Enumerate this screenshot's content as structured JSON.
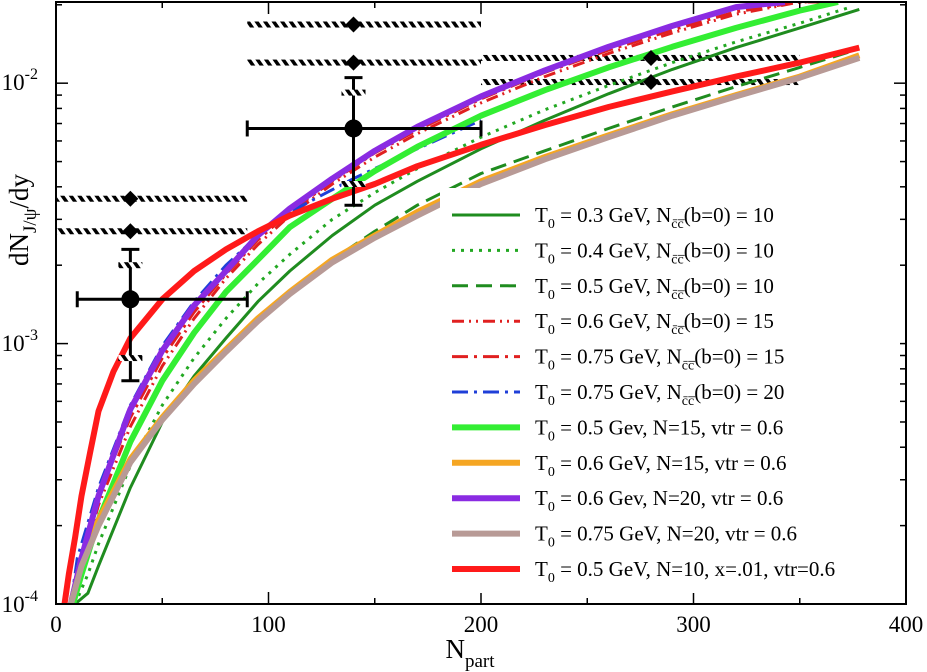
{
  "chart_data": {
    "type": "line",
    "title": "",
    "xlabel": "N",
    "xlabel_sub": "part",
    "ylabel": "dN",
    "ylabel_sub": "J/ψ",
    "ylabel_tail": "/dy",
    "x_range": [
      0,
      400
    ],
    "y_range": [
      0.0001,
      0.0205
    ],
    "y_scale": "log",
    "grid": false,
    "legend_position": "bottom-right",
    "x_ticks": [
      0,
      100,
      200,
      300,
      400
    ],
    "x_tick_labels": [
      "0",
      "100",
      "200",
      "300",
      "400"
    ],
    "y_ticks": [
      {
        "value": 0.0001,
        "base": "10",
        "exp": "-4"
      },
      {
        "value": 0.001,
        "base": "10",
        "exp": "-3"
      },
      {
        "value": 0.01,
        "base": "10",
        "exp": "-2"
      }
    ],
    "series": [
      {
        "name": "T0 = 0.3 GeV, Ncc(b=0) = 10",
        "color": "#1f8c1f",
        "width": 3,
        "dash": "",
        "legend": {
          "pre": "T",
          "sub0": "0",
          "mid": " = 0.3 GeV, N",
          "sub1": "c̄c̅",
          "post": "(b=0) = 10"
        },
        "x": [
          9,
          15,
          20,
          35,
          50,
          65,
          80,
          95,
          110,
          130,
          150,
          170,
          200,
          230,
          260,
          290,
          320,
          350,
          378
        ],
        "y": [
          0.0001,
          0.00011,
          0.00014,
          0.00028,
          0.0005,
          0.00075,
          0.00105,
          0.00145,
          0.0019,
          0.0026,
          0.0034,
          0.0042,
          0.0056,
          0.0072,
          0.0091,
          0.0113,
          0.0137,
          0.0163,
          0.0192
        ]
      },
      {
        "name": "T0 = 0.4 GeV, Ncc(b=0) = 10",
        "color": "#22a822",
        "width": 3,
        "dash": "3,6",
        "legend": {
          "pre": "T",
          "sub0": "0",
          "mid": " = 0.4 GeV, N",
          "sub1": "c̄c̅",
          "post": "(b=0) = 10"
        },
        "x": [
          9,
          15,
          20,
          35,
          50,
          65,
          80,
          95,
          110,
          130,
          150,
          170,
          200,
          230,
          260,
          290,
          320,
          350,
          373
        ],
        "y": [
          0.0001,
          0.00013,
          0.00017,
          0.00034,
          0.00058,
          0.00088,
          0.00125,
          0.0017,
          0.0022,
          0.003,
          0.0038,
          0.0047,
          0.0062,
          0.0079,
          0.0098,
          0.012,
          0.0144,
          0.017,
          0.0195
        ]
      },
      {
        "name": "T0 = 0.5 GeV, Ncc(b=0) = 10",
        "color": "#1f8c1f",
        "width": 3,
        "dash": "16,8",
        "legend": {
          "pre": "T",
          "sub0": "0",
          "mid": " = 0.5 GeV, N",
          "sub1": "c̄c̅",
          "post": "(b=0) = 10"
        },
        "x": [
          8,
          15,
          20,
          35,
          50,
          65,
          80,
          95,
          110,
          130,
          150,
          170,
          200,
          230,
          260,
          290,
          320,
          350,
          375
        ],
        "y": [
          0.0001,
          0.00016,
          0.0002,
          0.00036,
          0.00052,
          0.00072,
          0.00094,
          0.00122,
          0.00155,
          0.0021,
          0.0027,
          0.0034,
          0.0045,
          0.0055,
          0.0067,
          0.0081,
          0.0097,
          0.0115,
          0.0133
        ]
      },
      {
        "name": "T0 = 0.6 GeV, Ncc(b=0) = 15",
        "color": "#e02020",
        "width": 3,
        "dash": "12,5,2,5,2,5",
        "legend": {
          "pre": "T",
          "sub0": "0",
          "mid": " = 0.6 GeV, N",
          "sub1": "c̄c̅",
          "post": "(b=0) = 15"
        },
        "x": [
          8,
          12,
          20,
          35,
          50,
          65,
          80,
          95,
          110,
          130,
          150,
          170,
          200,
          230,
          260,
          290,
          320,
          350,
          365
        ],
        "y": [
          0.0001,
          0.00014,
          0.00024,
          0.00048,
          0.00082,
          0.00125,
          0.00178,
          0.0024,
          0.0031,
          0.0041,
          0.0052,
          0.0064,
          0.0084,
          0.0106,
          0.013,
          0.0156,
          0.0184,
          0.0205,
          0.0205
        ]
      },
      {
        "name": "T0 = 0.75 GeV, Ncc(b=0) = 15",
        "color": "#e02020",
        "width": 3,
        "dash": "16,6,3,6",
        "legend": {
          "pre": "T",
          "sub0": "0",
          "mid": " = 0.75 GeV, N",
          "sub1": "c̄c̅",
          "post": "(b=0) = 15"
        },
        "x": [
          7,
          12,
          20,
          35,
          50,
          65,
          80,
          95,
          110,
          130,
          150,
          170,
          200,
          230,
          260,
          290,
          320,
          350,
          362
        ],
        "y": [
          0.0001,
          0.00015,
          0.00026,
          0.00052,
          0.00088,
          0.00132,
          0.00185,
          0.0025,
          0.0032,
          0.0042,
          0.0054,
          0.0066,
          0.0087,
          0.011,
          0.0134,
          0.016,
          0.0188,
          0.0205,
          0.0205
        ]
      },
      {
        "name": "T0 = 0.75 GeV, Ncc(b=0) = 20",
        "color": "#1f3fd8",
        "width": 3,
        "dash": "16,6,3,6",
        "legend": {
          "pre": "T",
          "sub0": "0",
          "mid": " = 0.75 GeV, N",
          "sub1": "c̄c̅",
          "post": "(b=0) = 20"
        },
        "x": [
          7,
          10,
          20,
          35,
          50,
          65,
          80,
          95,
          110,
          130,
          140,
          150,
          170,
          200
        ],
        "y": [
          0.0001,
          0.00015,
          0.00028,
          0.00058,
          0.00098,
          0.00145,
          0.002,
          0.0026,
          0.0032,
          0.0039,
          0.0043,
          0.0047,
          0.0056,
          0.0072
        ]
      },
      {
        "name": "T0 = 0.5 Gev, N=15, vtr = 0.6",
        "color": "#33ee33",
        "width": 6,
        "dash": "",
        "legend": {
          "pre": "T",
          "sub0": "0",
          "mid": " = 0.5 Gev, N=15, vtr = 0.6",
          "sub1": "",
          "post": ""
        },
        "x": [
          8,
          12,
          20,
          35,
          50,
          65,
          80,
          95,
          110,
          130,
          150,
          170,
          200,
          230,
          260,
          290,
          320,
          350,
          368
        ],
        "y": [
          0.0001,
          0.00013,
          0.00021,
          0.00042,
          0.00072,
          0.0011,
          0.00158,
          0.0021,
          0.0028,
          0.0036,
          0.0046,
          0.0057,
          0.0075,
          0.0094,
          0.0115,
          0.0138,
          0.0163,
          0.019,
          0.0205
        ]
      },
      {
        "name": "T0 = 0.6 GeV, N=15, vtr = 0.6",
        "color": "#f5a623",
        "width": 6,
        "dash": "",
        "legend": {
          "pre": "T",
          "sub0": "0",
          "mid": " = 0.6 GeV, N=15, vtr = 0.6",
          "sub1": "",
          "post": ""
        },
        "x": [
          7,
          12,
          20,
          35,
          50,
          65,
          80,
          95,
          110,
          130,
          150,
          170,
          200,
          230,
          260,
          290,
          320,
          350,
          378
        ],
        "y": [
          0.0001,
          0.00015,
          0.00021,
          0.00036,
          0.00052,
          0.00072,
          0.00095,
          0.00125,
          0.00158,
          0.0021,
          0.0026,
          0.0032,
          0.0042,
          0.0052,
          0.0063,
          0.0076,
          0.009,
          0.0106,
          0.0128
        ]
      },
      {
        "name": "T0 = 0.6 Gev, N=20, vtr = 0.6",
        "color": "#8a2be2",
        "width": 6,
        "dash": "",
        "legend": {
          "pre": "T",
          "sub0": "0",
          "mid": " = 0.6 Gev, N=20, vtr = 0.6",
          "sub1": "",
          "post": ""
        },
        "x": [
          7,
          12,
          20,
          35,
          50,
          65,
          80,
          95,
          110,
          130,
          150,
          170,
          200,
          230,
          260,
          290,
          320,
          343
        ],
        "y": [
          0.0001,
          0.00015,
          0.00026,
          0.00056,
          0.00094,
          0.0014,
          0.0019,
          0.0026,
          0.0033,
          0.0043,
          0.0055,
          0.0068,
          0.0089,
          0.0112,
          0.0138,
          0.0166,
          0.0196,
          0.0205
        ]
      },
      {
        "name": "T0 = 0.75 GeV, N=20, vtr = 0.6",
        "color": "#b89a96",
        "width": 6,
        "dash": "",
        "legend": {
          "pre": "T",
          "sub0": "0",
          "mid": " = 0.75 GeV, N=20, vtr = 0.6",
          "sub1": "",
          "post": ""
        },
        "x": [
          7,
          12,
          20,
          35,
          50,
          65,
          80,
          95,
          110,
          130,
          150,
          170,
          200,
          230,
          260,
          290,
          320,
          350,
          378
        ],
        "y": [
          0.0001,
          0.00014,
          0.0002,
          0.00035,
          0.00051,
          0.0007,
          0.00093,
          0.00122,
          0.00155,
          0.00205,
          0.00255,
          0.0031,
          0.0041,
          0.0051,
          0.0062,
          0.0075,
          0.0089,
          0.0105,
          0.0125
        ]
      },
      {
        "name": "T0 = 0.5 GeV, N=10, x=.01, vtr=0.6",
        "color": "#ff1a1a",
        "width": 6,
        "dash": "",
        "legend": {
          "pre": "T",
          "sub0": "0",
          "mid": " = 0.5 GeV, N=10, x=.01, vtr=0.6",
          "sub1": "",
          "post": ""
        },
        "x": [
          4,
          6,
          9,
          12,
          16,
          20,
          27,
          35,
          50,
          65,
          80,
          95,
          110,
          130,
          150,
          170,
          200,
          230,
          260,
          290,
          320,
          350,
          378
        ],
        "y": [
          0.0001,
          0.00013,
          0.00018,
          0.00026,
          0.00038,
          0.00055,
          0.00078,
          0.00105,
          0.00148,
          0.0019,
          0.0023,
          0.0027,
          0.0031,
          0.0036,
          0.0041,
          0.0048,
          0.0058,
          0.0069,
          0.0081,
          0.0093,
          0.0106,
          0.012,
          0.0137
        ]
      }
    ],
    "data_points": [
      {
        "name": "point-a",
        "x": 35,
        "y": 0.00148,
        "xerr": [
          10,
          90
        ],
        "yerr": [
          0.00072,
          0.0023
        ],
        "syst": [
          0.00088,
          0.002
        ]
      },
      {
        "name": "point-b",
        "x": 140,
        "y": 0.0067,
        "xerr": [
          90,
          200
        ],
        "yerr": [
          0.0034,
          0.0105
        ],
        "syst": [
          0.0041,
          0.0092
        ]
      }
    ],
    "diamond_markers": [
      {
        "x": 35,
        "y": 0.0036,
        "band": [
          0,
          90
        ]
      },
      {
        "x": 35,
        "y": 0.0027,
        "band": [
          0,
          90
        ]
      },
      {
        "x": 140,
        "y": 0.0168,
        "band": [
          90,
          200
        ]
      },
      {
        "x": 140,
        "y": 0.012,
        "band": [
          90,
          200
        ]
      },
      {
        "x": 280,
        "y": 0.0125,
        "band": [
          200,
          350
        ]
      },
      {
        "x": 280,
        "y": 0.0101,
        "band": [
          200,
          350
        ]
      }
    ]
  }
}
